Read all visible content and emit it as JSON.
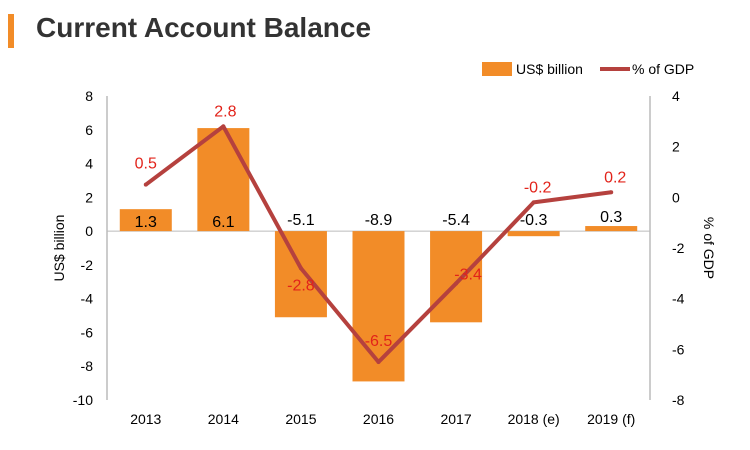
{
  "title": "Current Account Balance",
  "colors": {
    "bar": "#f28c28",
    "line": "#b5413e",
    "line_label": "#e2231a",
    "text": "#000000",
    "axis": "#999999",
    "accent": "#f28c28"
  },
  "chart_data": {
    "type": "bar",
    "categories": [
      "2013",
      "2014",
      "2015",
      "2016",
      "2017",
      "2018 (e)",
      "2019 (f)"
    ],
    "series": [
      {
        "name": "US$ billion",
        "type": "bar",
        "axis": "left",
        "values": [
          1.3,
          6.1,
          -5.1,
          -8.9,
          -5.4,
          -0.3,
          0.3
        ],
        "labels": [
          "1.3",
          "6.1",
          "-5.1",
          "-8.9",
          "-5.4",
          "-0.3",
          "0.3"
        ]
      },
      {
        "name": "% of GDP",
        "type": "line",
        "axis": "right",
        "values": [
          0.5,
          2.8,
          -2.8,
          -6.5,
          -3.4,
          -0.2,
          0.2
        ],
        "labels": [
          "0.5",
          "2.8",
          "-2.8",
          "-6.5",
          "-3.4",
          "-0.2",
          "0.2"
        ]
      }
    ],
    "ylabel": "US$ billion",
    "y2label": "% of GDP",
    "ylim": [
      -10,
      8
    ],
    "y2lim": [
      -8,
      4
    ],
    "yticks": [
      "8",
      "6",
      "4",
      "2",
      "0",
      "-2",
      "-4",
      "-6",
      "-8",
      "-10"
    ],
    "y2ticks": [
      "4",
      "2",
      "0",
      "-2",
      "-4",
      "-6",
      "-8"
    ],
    "legend": "top-right"
  }
}
